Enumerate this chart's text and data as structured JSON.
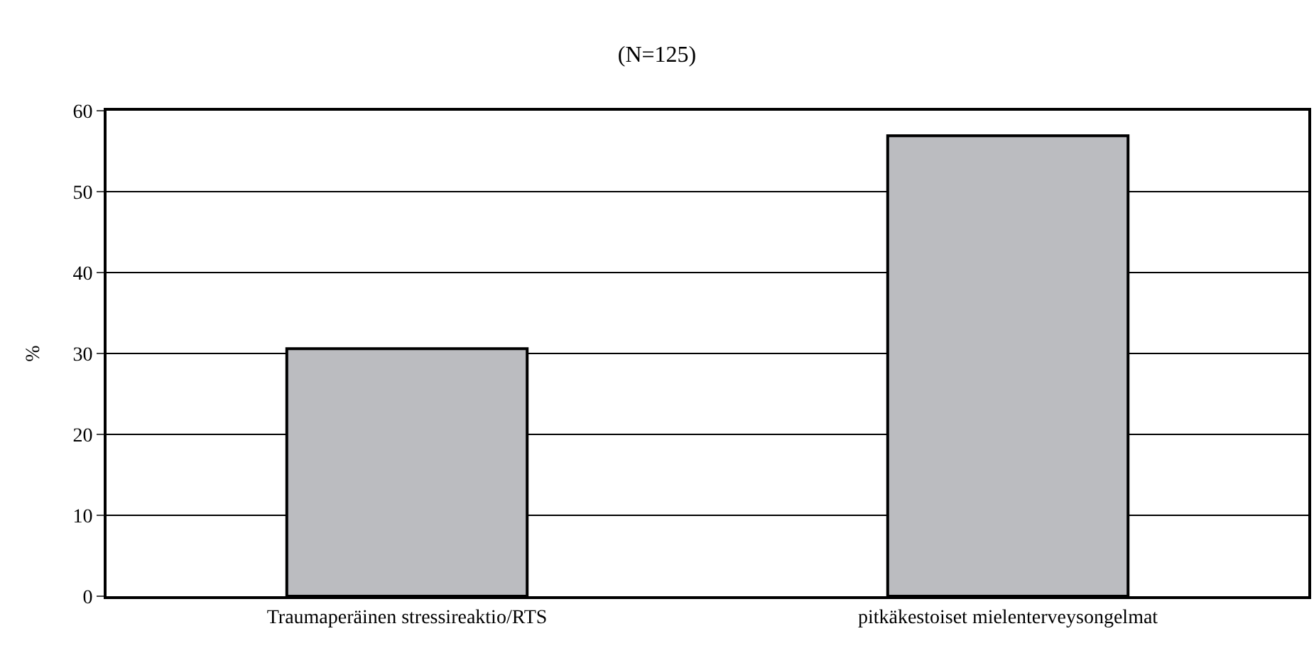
{
  "chart_data": {
    "type": "bar",
    "title": "(N=125)",
    "ylabel": "%",
    "categories": [
      "Traumaperäinen stressireaktio/RTS",
      "pitkäkestoiset mielenterveysongelmat"
    ],
    "values": [
      30.6,
      56.9
    ],
    "color": "#bbbcc0",
    "ylim": [
      0,
      60
    ],
    "yticks": [
      0,
      10,
      20,
      30,
      40,
      50,
      60
    ],
    "grid": "y"
  }
}
